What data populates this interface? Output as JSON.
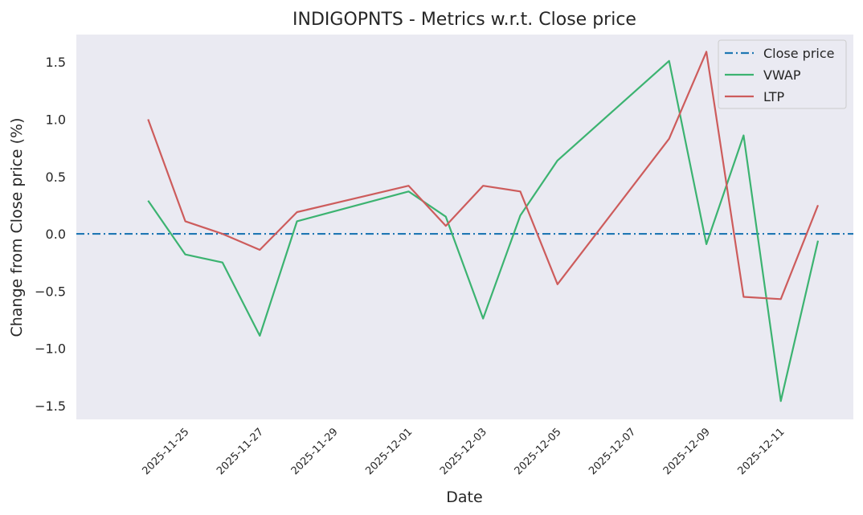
{
  "chart_data": {
    "type": "line",
    "title": "INDIGOPNTS - Metrics w.r.t. Close price",
    "xlabel": "Date",
    "ylabel": "Change from Close price (%)",
    "x": [
      "2025-11-24",
      "2025-11-25",
      "2025-11-26",
      "2025-11-27",
      "2025-11-28",
      "2025-12-01",
      "2025-12-02",
      "2025-12-03",
      "2025-12-04",
      "2025-12-05",
      "2025-12-08",
      "2025-12-09",
      "2025-12-10",
      "2025-12-11",
      "2025-12-12"
    ],
    "x_ticks": [
      "2025-11-25",
      "2025-11-27",
      "2025-11-29",
      "2025-12-01",
      "2025-12-03",
      "2025-12-05",
      "2025-12-07",
      "2025-12-09",
      "2025-12-11"
    ],
    "x_range": [
      "2025-11-23",
      "2025-12-12"
    ],
    "y_ticks": [
      1.5,
      1.0,
      0.5,
      0.0,
      -0.5,
      -1.0,
      -1.5
    ],
    "y_tick_labels": [
      "1.5",
      "1.0",
      "0.5",
      "0.0",
      "−0.5",
      "−1.0",
      "−1.5"
    ],
    "ylim": [
      -1.62,
      1.74
    ],
    "grid": false,
    "legend_position": "top-right",
    "series": [
      {
        "name": "Close price",
        "style": "dashdot",
        "color": "#1f77b4",
        "values": [
          0,
          0,
          0,
          0,
          0,
          0,
          0,
          0,
          0,
          0,
          0,
          0,
          0,
          0,
          0
        ]
      },
      {
        "name": "VWAP",
        "style": "solid",
        "color": "#3cb371",
        "values": [
          0.29,
          -0.18,
          -0.25,
          -0.89,
          0.11,
          0.37,
          0.15,
          -0.74,
          0.16,
          0.64,
          1.51,
          -0.09,
          0.86,
          -1.46,
          -0.06
        ]
      },
      {
        "name": "LTP",
        "style": "solid",
        "color": "#cd5c5c",
        "values": [
          1.0,
          0.11,
          0.0,
          -0.14,
          0.19,
          0.42,
          0.07,
          0.42,
          0.37,
          -0.44,
          0.83,
          1.59,
          -0.55,
          -0.57,
          0.25
        ]
      }
    ]
  }
}
